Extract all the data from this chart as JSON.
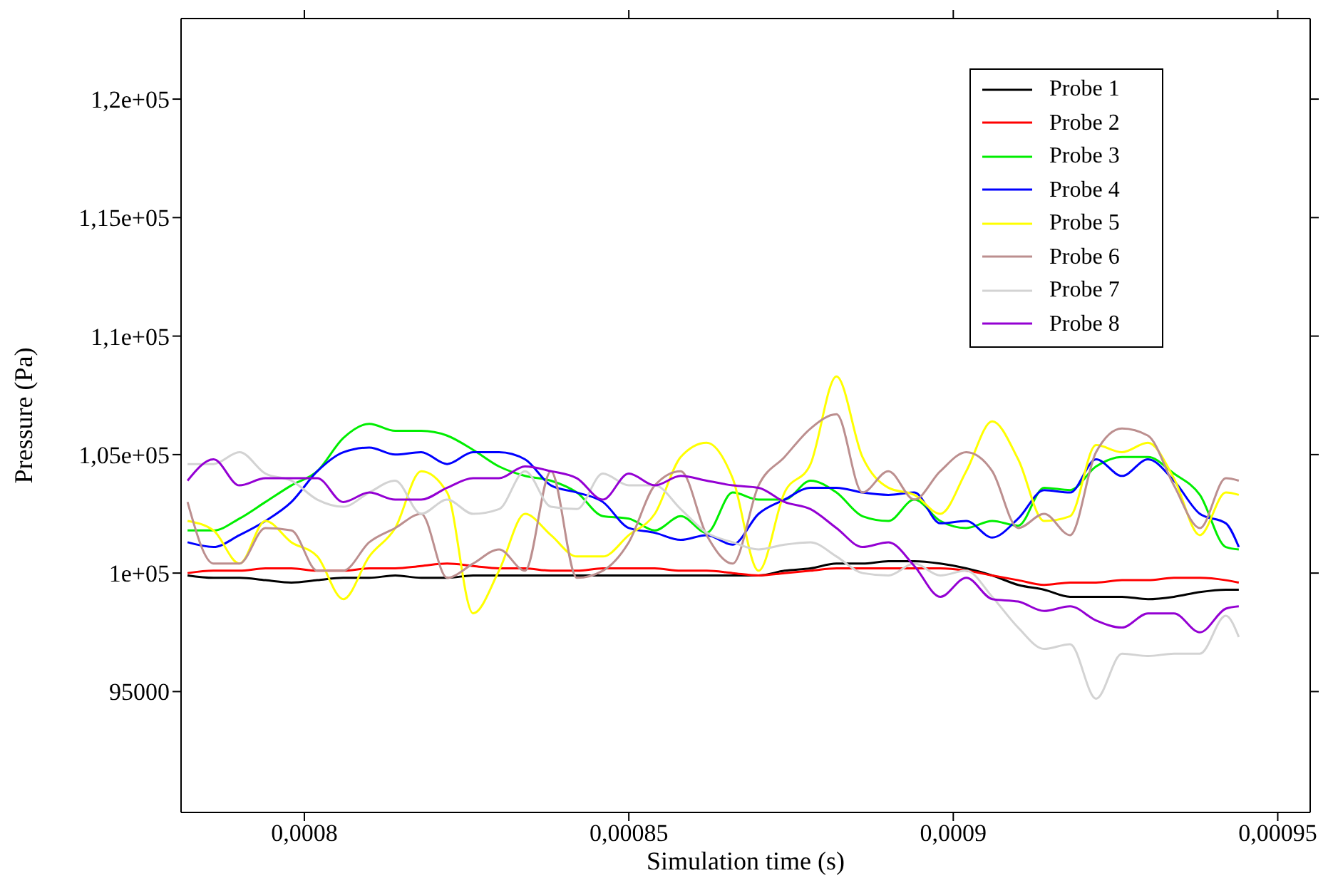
{
  "chart_data": {
    "type": "line",
    "xlabel": "Simulation time (s)",
    "ylabel": "Pressure (Pa)",
    "xlim": [
      0.000781,
      0.000955
    ],
    "ylim": [
      89900,
      123400
    ],
    "xticks": [
      {
        "value": 0.0008,
        "label": "0,0008"
      },
      {
        "value": 0.00085,
        "label": "0,00085"
      },
      {
        "value": 0.0009,
        "label": "0,0009"
      },
      {
        "value": 0.00095,
        "label": "0,00095"
      }
    ],
    "yticks": [
      95000,
      {
        "value": 100000,
        "label": "1e+05"
      },
      {
        "value": 105000,
        "label": "1,05e+05"
      },
      {
        "value": 110000,
        "label": "1,1e+05"
      },
      {
        "value": 115000,
        "label": "1,15e+05"
      },
      {
        "value": 120000,
        "label": "1,2e+05"
      }
    ],
    "grid": false,
    "legend": "top right",
    "x": [
      0.000782,
      0.000786,
      0.00079,
      0.000794,
      0.000798,
      0.000802,
      0.000806,
      0.00081,
      0.000814,
      0.000818,
      0.000822,
      0.000826,
      0.00083,
      0.000834,
      0.000838,
      0.000842,
      0.000846,
      0.00085,
      0.000854,
      0.000858,
      0.000862,
      0.000866,
      0.00087,
      0.000874,
      0.000878,
      0.000882,
      0.000886,
      0.00089,
      0.000894,
      0.000898,
      0.000902,
      0.000906,
      0.00091,
      0.000914,
      0.000918,
      0.000922,
      0.000926,
      0.00093,
      0.000934,
      0.000938,
      0.000942,
      0.000944
    ],
    "series": [
      {
        "name": "Probe 1",
        "color": "#000000",
        "values": [
          99900,
          99800,
          99800,
          99700,
          99600,
          99700,
          99800,
          99800,
          99900,
          99800,
          99800,
          99900,
          99900,
          99900,
          99900,
          99900,
          99900,
          99900,
          99900,
          99900,
          99900,
          99900,
          99900,
          100100,
          100200,
          100400,
          100400,
          100500,
          100500,
          100400,
          100200,
          99900,
          99500,
          99300,
          99000,
          99000,
          99000,
          98900,
          99000,
          99200,
          99300,
          99300
        ]
      },
      {
        "name": "Probe 2",
        "color": "#ff0000",
        "values": [
          100000,
          100100,
          100100,
          100200,
          100200,
          100100,
          100100,
          100200,
          100200,
          100300,
          100400,
          100300,
          100200,
          100200,
          100100,
          100100,
          100200,
          100200,
          100200,
          100100,
          100100,
          100000,
          99900,
          100000,
          100100,
          100200,
          100200,
          100200,
          100200,
          100200,
          100100,
          99900,
          99700,
          99500,
          99600,
          99600,
          99700,
          99700,
          99800,
          99800,
          99700,
          99600
        ]
      },
      {
        "name": "Probe 3",
        "color": "#00ee00",
        "values": [
          101800,
          101800,
          102300,
          103000,
          103700,
          104300,
          105700,
          106300,
          106000,
          106000,
          105800,
          105200,
          104500,
          104100,
          103900,
          103400,
          102400,
          102300,
          101800,
          102400,
          101700,
          103400,
          103100,
          103100,
          103900,
          103400,
          102400,
          102200,
          103100,
          102200,
          101900,
          102200,
          102000,
          103600,
          103500,
          104500,
          104900,
          104900,
          104200,
          103300,
          101100,
          101000
        ]
      },
      {
        "name": "Probe 4",
        "color": "#0000ff",
        "values": [
          101300,
          101100,
          101600,
          102200,
          103000,
          104300,
          105100,
          105300,
          105000,
          105100,
          104600,
          105100,
          105100,
          104800,
          103700,
          103400,
          103000,
          101900,
          101700,
          101400,
          101600,
          101200,
          102500,
          103100,
          103600,
          103600,
          103400,
          103300,
          103400,
          102100,
          102200,
          101500,
          102300,
          103500,
          103400,
          104800,
          104100,
          104800,
          103900,
          102500,
          102100,
          101100
        ]
      },
      {
        "name": "Probe 5",
        "color": "#ffff00",
        "values": [
          102200,
          101800,
          100400,
          102200,
          101300,
          100700,
          98900,
          100700,
          101900,
          104300,
          103400,
          98300,
          100100,
          102500,
          101600,
          100700,
          100700,
          101600,
          102500,
          104900,
          105500,
          104000,
          100100,
          103400,
          104600,
          108300,
          104900,
          103600,
          103300,
          102500,
          104300,
          106400,
          104800,
          102200,
          102400,
          105400,
          105100,
          105500,
          104000,
          101600,
          103400,
          103300
        ]
      },
      {
        "name": "Probe 6",
        "color": "#bc8f8f",
        "values": [
          103000,
          100400,
          100400,
          101900,
          101800,
          100100,
          100100,
          101300,
          101900,
          102500,
          99800,
          100400,
          101000,
          100100,
          104300,
          99800,
          100100,
          101300,
          103700,
          104300,
          101600,
          100400,
          103700,
          104900,
          106100,
          106700,
          103400,
          104300,
          103100,
          104300,
          105100,
          104300,
          101900,
          102500,
          101600,
          105100,
          106100,
          105800,
          103700,
          101900,
          104000,
          103900
        ]
      },
      {
        "name": "Probe 7",
        "color": "#d3d3d3",
        "values": [
          104600,
          104600,
          105100,
          104200,
          103900,
          103100,
          102800,
          103400,
          103900,
          102500,
          103100,
          102500,
          102700,
          104300,
          102800,
          102700,
          104200,
          103700,
          103700,
          102700,
          101700,
          101300,
          101000,
          101200,
          101300,
          100700,
          100000,
          99900,
          100400,
          99900,
          100100,
          99000,
          97700,
          96800,
          97000,
          94700,
          96600,
          96500,
          96600,
          96600,
          98200,
          97300
        ]
      },
      {
        "name": "Probe 8",
        "color": "#9400d3",
        "values": [
          103900,
          104800,
          103700,
          104000,
          104000,
          104000,
          103000,
          103400,
          103100,
          103100,
          103600,
          104000,
          104000,
          104500,
          104300,
          104000,
          103100,
          104200,
          103700,
          104100,
          103900,
          103700,
          103600,
          103000,
          102700,
          101900,
          101100,
          101300,
          100300,
          99000,
          99800,
          98900,
          98800,
          98400,
          98600,
          98000,
          97700,
          98300,
          98300,
          97500,
          98500,
          98600
        ]
      }
    ]
  }
}
